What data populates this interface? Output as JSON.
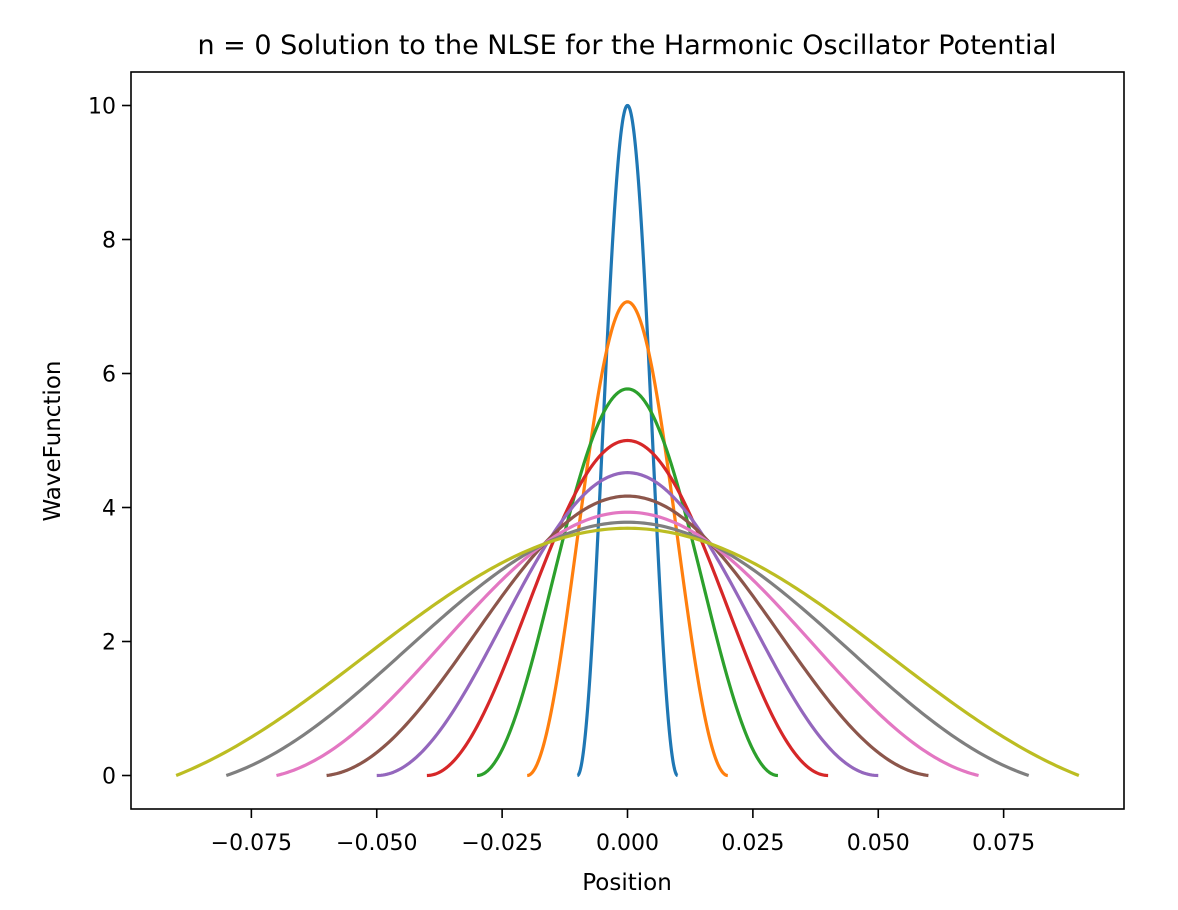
{
  "chart_data": {
    "type": "line",
    "title": "n = 0 Solution to the NLSE for the Harmonic Oscillator Potential",
    "xlabel": "Position",
    "ylabel": "WaveFunction",
    "xlim": [
      -0.099,
      0.099
    ],
    "ylim": [
      -0.5,
      10.5
    ],
    "xticks": [
      -0.075,
      -0.05,
      -0.025,
      0.0,
      0.025,
      0.05,
      0.075
    ],
    "xtick_labels": [
      "−0.075",
      "−0.050",
      "−0.025",
      "0.000",
      "0.025",
      "0.050",
      "0.075"
    ],
    "yticks": [
      0,
      2,
      4,
      6,
      8,
      10
    ],
    "ytick_labels": [
      "0",
      "2",
      "4",
      "6",
      "8",
      "10"
    ],
    "grid": false,
    "legend": "none",
    "colors": [
      "#1f77b4",
      "#ff7f0e",
      "#2ca02c",
      "#d62728",
      "#9467bd",
      "#8c564b",
      "#e377c2",
      "#7f7f7f",
      "#bcbd22"
    ],
    "series": [
      {
        "x_half_width": 0.01,
        "peak": 10.0,
        "tail_fraction": 0.0
      },
      {
        "x_half_width": 0.02,
        "peak": 7.07,
        "tail_fraction": 0.0
      },
      {
        "x_half_width": 0.03,
        "peak": 5.77,
        "tail_fraction": 0.0
      },
      {
        "x_half_width": 0.04,
        "peak": 5.0,
        "tail_fraction": 0.0
      },
      {
        "x_half_width": 0.05,
        "peak": 4.52,
        "tail_fraction": 0.0
      },
      {
        "x_half_width": 0.06,
        "peak": 4.17,
        "tail_fraction": 0.08
      },
      {
        "x_half_width": 0.07,
        "peak": 3.93,
        "tail_fraction": 0.2
      },
      {
        "x_half_width": 0.08,
        "peak": 3.78,
        "tail_fraction": 0.34
      },
      {
        "x_half_width": 0.09,
        "peak": 3.69,
        "tail_fraction": 0.46
      }
    ]
  }
}
